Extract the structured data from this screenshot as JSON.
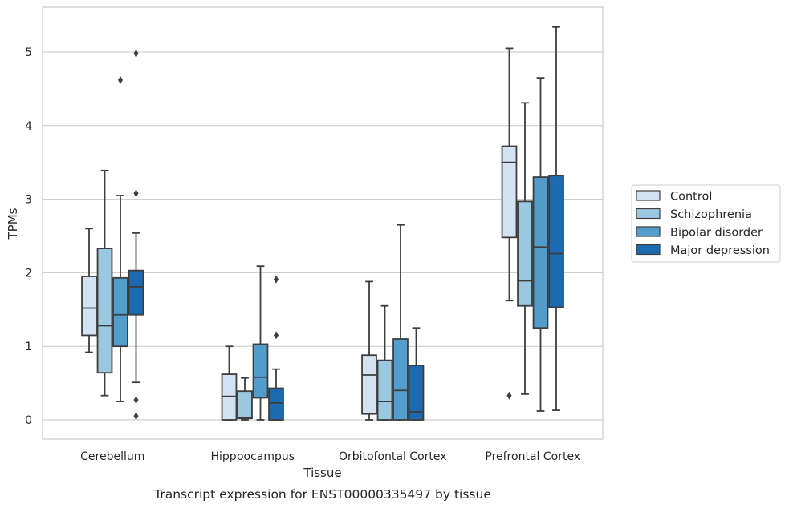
{
  "caption": "Transcript expression for ENST00000335497 by tissue",
  "chart_data": {
    "type": "box",
    "xlabel": "Tissue",
    "ylabel": "TPMs",
    "ylim": [
      -0.27,
      5.6
    ],
    "yticks": [
      0,
      1,
      2,
      3,
      4,
      5
    ],
    "grid": "horizontal",
    "legend_position": "right",
    "categories": [
      "Cerebellum",
      "Hipppocampus",
      "Orbitofontal Cortex",
      "Prefrontal Cortex"
    ],
    "series": [
      {
        "name": "Control",
        "color": "#d3e3f3",
        "boxes": [
          {
            "whisker_low": 0.92,
            "q1": 1.15,
            "median": 1.52,
            "q3": 1.95,
            "whisker_high": 2.6,
            "outliers": []
          },
          {
            "whisker_low": 0.0,
            "q1": 0.0,
            "median": 0.32,
            "q3": 0.62,
            "whisker_high": 1.0,
            "outliers": []
          },
          {
            "whisker_low": 0.0,
            "q1": 0.08,
            "median": 0.61,
            "q3": 0.88,
            "whisker_high": 1.88,
            "outliers": []
          },
          {
            "whisker_low": 1.62,
            "q1": 2.48,
            "median": 3.5,
            "q3": 3.72,
            "whisker_high": 5.05,
            "outliers": [
              0.33
            ]
          }
        ]
      },
      {
        "name": "Schizophrenia",
        "color": "#9ac8e0",
        "boxes": [
          {
            "whisker_low": 0.33,
            "q1": 0.64,
            "median": 1.28,
            "q3": 2.33,
            "whisker_high": 3.39,
            "outliers": []
          },
          {
            "whisker_low": 0.0,
            "q1": 0.02,
            "median": 0.03,
            "q3": 0.39,
            "whisker_high": 0.57,
            "outliers": []
          },
          {
            "whisker_low": 0.0,
            "q1": 0.0,
            "median": 0.25,
            "q3": 0.81,
            "whisker_high": 1.55,
            "outliers": []
          },
          {
            "whisker_low": 0.35,
            "q1": 1.55,
            "median": 1.89,
            "q3": 2.97,
            "whisker_high": 4.31,
            "outliers": []
          }
        ]
      },
      {
        "name": "Bipolar disorder",
        "color": "#529dcc",
        "boxes": [
          {
            "whisker_low": 0.25,
            "q1": 1.0,
            "median": 1.43,
            "q3": 1.93,
            "whisker_high": 3.05,
            "outliers": [
              4.62
            ]
          },
          {
            "whisker_low": 0.0,
            "q1": 0.3,
            "median": 0.58,
            "q3": 1.03,
            "whisker_high": 2.09,
            "outliers": []
          },
          {
            "whisker_low": 0.0,
            "q1": 0.0,
            "median": 0.4,
            "q3": 1.1,
            "whisker_high": 2.65,
            "outliers": []
          },
          {
            "whisker_low": 0.12,
            "q1": 1.25,
            "median": 2.35,
            "q3": 3.3,
            "whisker_high": 4.65,
            "outliers": []
          }
        ]
      },
      {
        "name": "Major depression",
        "color": "#1c6aaf",
        "boxes": [
          {
            "whisker_low": 0.51,
            "q1": 1.43,
            "median": 1.81,
            "q3": 2.03,
            "whisker_high": 2.54,
            "outliers": [
              4.98,
              3.08,
              0.27,
              0.05
            ]
          },
          {
            "whisker_low": 0.0,
            "q1": 0.0,
            "median": 0.23,
            "q3": 0.43,
            "whisker_high": 0.69,
            "outliers": [
              1.91,
              1.15
            ]
          },
          {
            "whisker_low": 0.0,
            "q1": 0.0,
            "median": 0.11,
            "q3": 0.74,
            "whisker_high": 1.25,
            "outliers": []
          },
          {
            "whisker_low": 0.13,
            "q1": 1.53,
            "median": 2.26,
            "q3": 3.32,
            "whisker_high": 5.34,
            "outliers": []
          }
        ]
      }
    ]
  }
}
